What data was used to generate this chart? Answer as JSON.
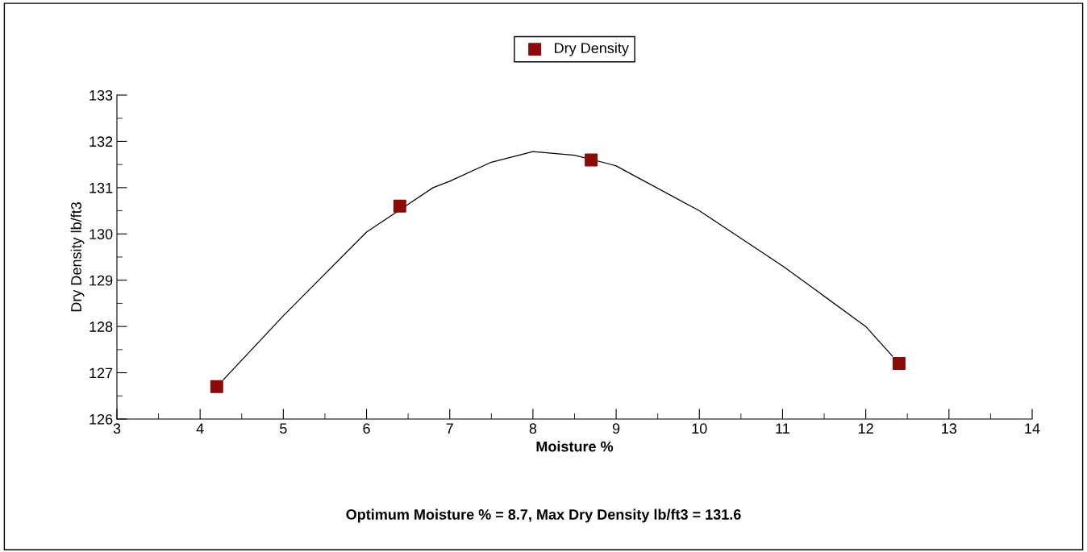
{
  "chart_data": {
    "type": "scatter",
    "xlabel": "Moisture %",
    "ylabel": "Dry Density lb/ft3",
    "series": [
      {
        "name": "Dry Density",
        "color": "#8b0a0a",
        "marker": "square",
        "x": [
          4.2,
          6.4,
          8.7,
          12.4
        ],
        "values": [
          126.7,
          130.6,
          131.6,
          127.2
        ]
      },
      {
        "type": "line",
        "color": "#000000",
        "marker": "none",
        "x": [
          4.28,
          5,
          6,
          6.8,
          7,
          7.5,
          8,
          8.5,
          8.9,
          9,
          10,
          11,
          12,
          12.32
        ],
        "values": [
          126.85,
          128.23,
          130.04,
          131.0,
          131.14,
          131.55,
          131.78,
          131.7,
          131.52,
          131.47,
          130.5,
          129.31,
          128.0,
          127.36
        ]
      }
    ],
    "xlim": [
      3,
      14
    ],
    "xticks": [
      3,
      4,
      5,
      6,
      7,
      8,
      9,
      10,
      11,
      12,
      13,
      14
    ],
    "ylim": [
      126,
      133
    ],
    "yticks": [
      126,
      127,
      128,
      129,
      130,
      131,
      132,
      133
    ],
    "grid": false,
    "legend": "top",
    "annotations": [
      "Optimum Moisture % = 8.7, Max Dry Density lb/ft3 = 131.6"
    ]
  }
}
